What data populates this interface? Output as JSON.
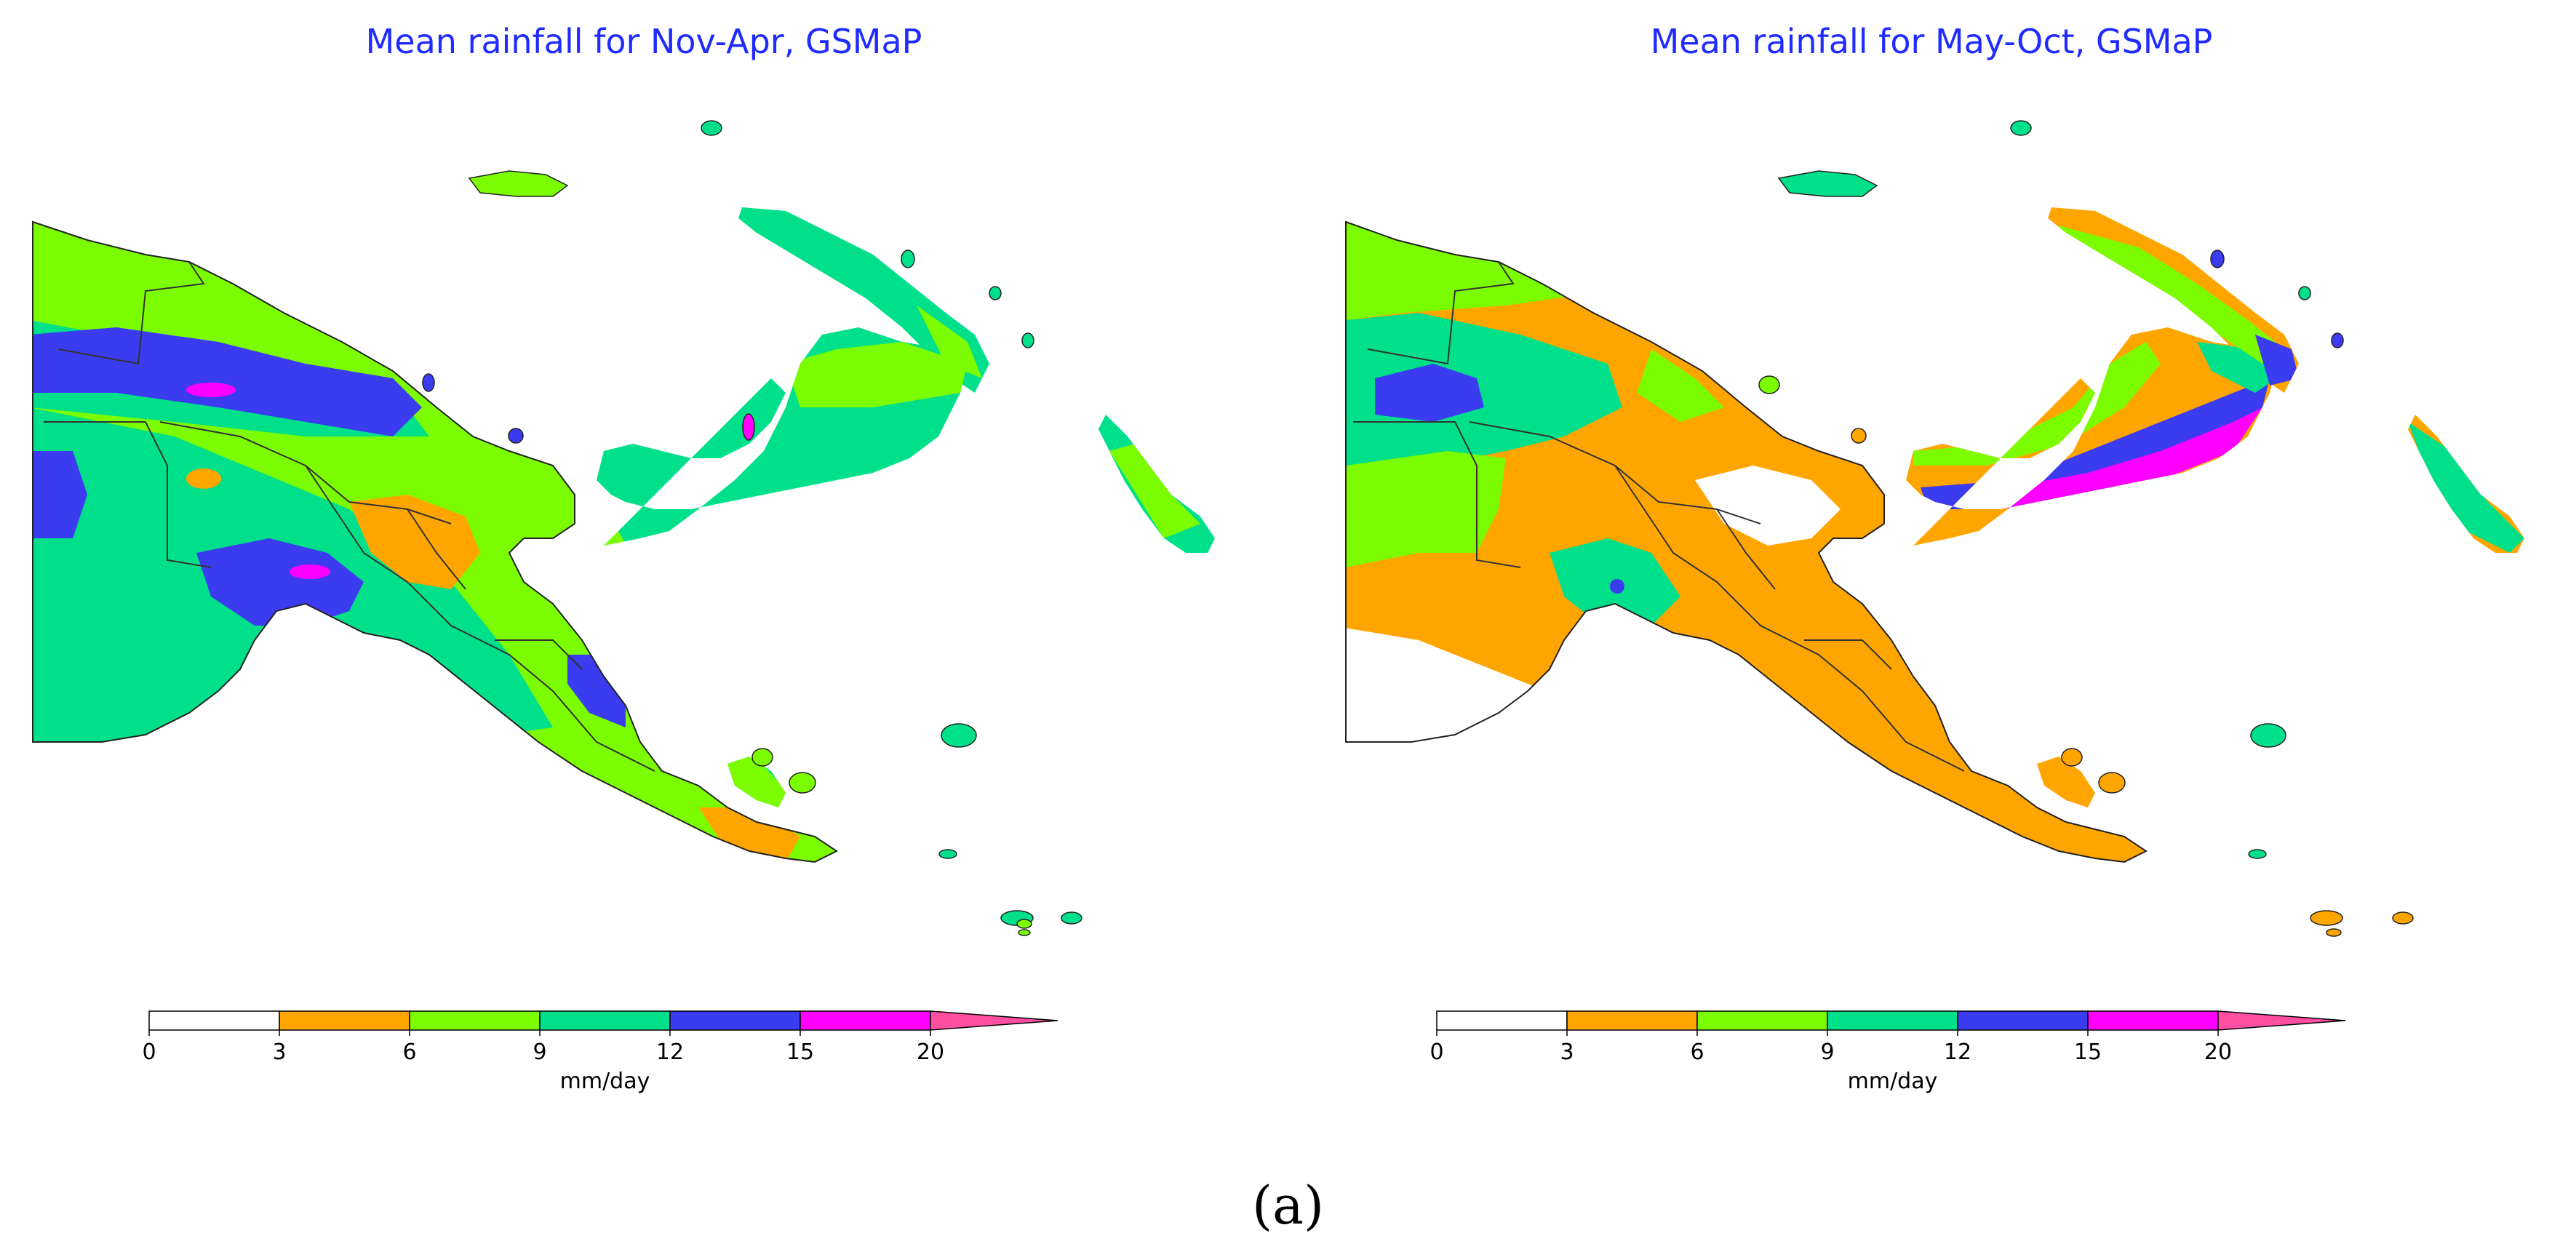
{
  "panels": [
    {
      "title": "Mean rainfall for Nov-Apr, GSMaP",
      "season": "Nov-Apr"
    },
    {
      "title": "Mean rainfall for May-Oct, GSMaP",
      "season": "May-Oct"
    }
  ],
  "colorbar": {
    "unit_label": "mm/day",
    "tick_labels": [
      "0",
      "3",
      "6",
      "9",
      "12",
      "15",
      "20"
    ],
    "bins": [
      {
        "range": [
          0,
          3
        ],
        "color": "#ffffff"
      },
      {
        "range": [
          3,
          6
        ],
        "color": "#ffa500"
      },
      {
        "range": [
          6,
          9
        ],
        "color": "#7cfc00"
      },
      {
        "range": [
          9,
          12
        ],
        "color": "#00e08a"
      },
      {
        "range": [
          12,
          15
        ],
        "color": "#3b3bf0"
      },
      {
        "range": [
          15,
          20
        ],
        "color": "#ff00ff"
      }
    ],
    "extend_color": "#ff4fa0"
  },
  "figure_label": "(a)"
}
